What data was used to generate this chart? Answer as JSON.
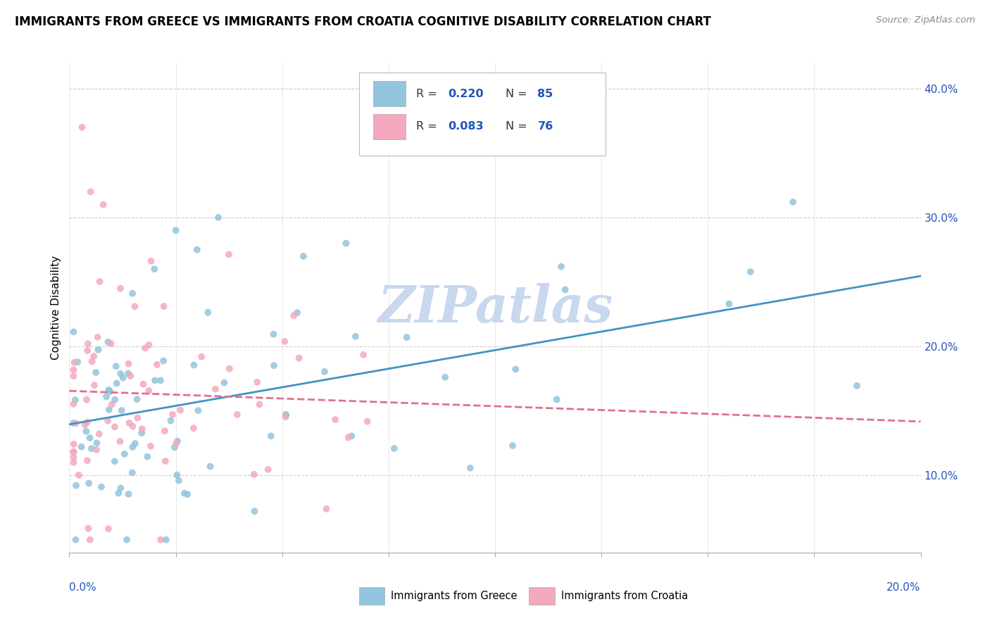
{
  "title": "IMMIGRANTS FROM GREECE VS IMMIGRANTS FROM CROATIA COGNITIVE DISABILITY CORRELATION CHART",
  "source": "Source: ZipAtlas.com",
  "ylabel": "Cognitive Disability",
  "x_min": 0.0,
  "x_max": 0.2,
  "y_min": 0.04,
  "y_max": 0.42,
  "color_greece": "#92c5de",
  "color_croatia": "#f4a9be",
  "trendline_greece_color": "#4393c3",
  "trendline_croatia_color": "#e07090",
  "R_greece": 0.22,
  "N_greece": 85,
  "R_croatia": 0.083,
  "N_croatia": 76,
  "legend_color": "#2255bb",
  "watermark": "ZIPatlas",
  "watermark_color": "#c8d8ee"
}
